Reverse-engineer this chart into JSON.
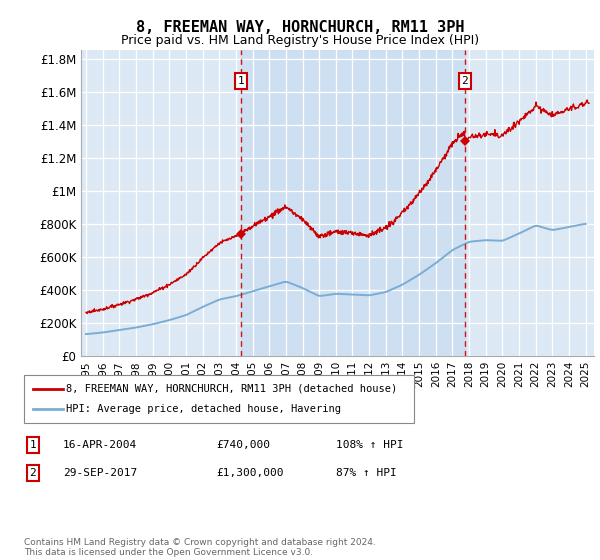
{
  "title": "8, FREEMAN WAY, HORNCHURCH, RM11 3PH",
  "subtitle": "Price paid vs. HM Land Registry's House Price Index (HPI)",
  "ylabel_ticks": [
    "£0",
    "£200K",
    "£400K",
    "£600K",
    "£800K",
    "£1M",
    "£1.2M",
    "£1.4M",
    "£1.6M",
    "£1.8M"
  ],
  "ytick_values": [
    0,
    200000,
    400000,
    600000,
    800000,
    1000000,
    1200000,
    1400000,
    1600000,
    1800000
  ],
  "ylim": [
    0,
    1850000
  ],
  "xlim_start": 1994.7,
  "xlim_end": 2025.5,
  "background_color": "#dce9f5",
  "shade_color": "#c5d9ef",
  "red_line_color": "#cc0000",
  "blue_line_color": "#7aadd4",
  "sale1_x": 2004.29,
  "sale1_y": 740000,
  "sale2_x": 2017.75,
  "sale2_y": 1300000,
  "legend_red_label": "8, FREEMAN WAY, HORNCHURCH, RM11 3PH (detached house)",
  "legend_blue_label": "HPI: Average price, detached house, Havering",
  "annotation1_date": "16-APR-2004",
  "annotation1_price": "£740,000",
  "annotation1_hpi": "108% ↑ HPI",
  "annotation2_date": "29-SEP-2017",
  "annotation2_price": "£1,300,000",
  "annotation2_hpi": "87% ↑ HPI",
  "footer": "Contains HM Land Registry data © Crown copyright and database right 2024.\nThis data is licensed under the Open Government Licence v3.0.",
  "title_fontsize": 11,
  "subtitle_fontsize": 9,
  "hpi_years": [
    1995,
    1996,
    1997,
    1998,
    1999,
    2000,
    2001,
    2002,
    2003,
    2004,
    2005,
    2006,
    2007,
    2008,
    2009,
    2010,
    2011,
    2012,
    2013,
    2014,
    2015,
    2016,
    2017,
    2018,
    2019,
    2020,
    2021,
    2022,
    2023,
    2024,
    2025
  ],
  "hpi_values": [
    130000,
    140000,
    155000,
    170000,
    190000,
    215000,
    245000,
    295000,
    340000,
    360000,
    390000,
    420000,
    450000,
    410000,
    360000,
    375000,
    370000,
    365000,
    385000,
    430000,
    490000,
    560000,
    640000,
    690000,
    700000,
    695000,
    740000,
    790000,
    760000,
    780000,
    800000
  ]
}
